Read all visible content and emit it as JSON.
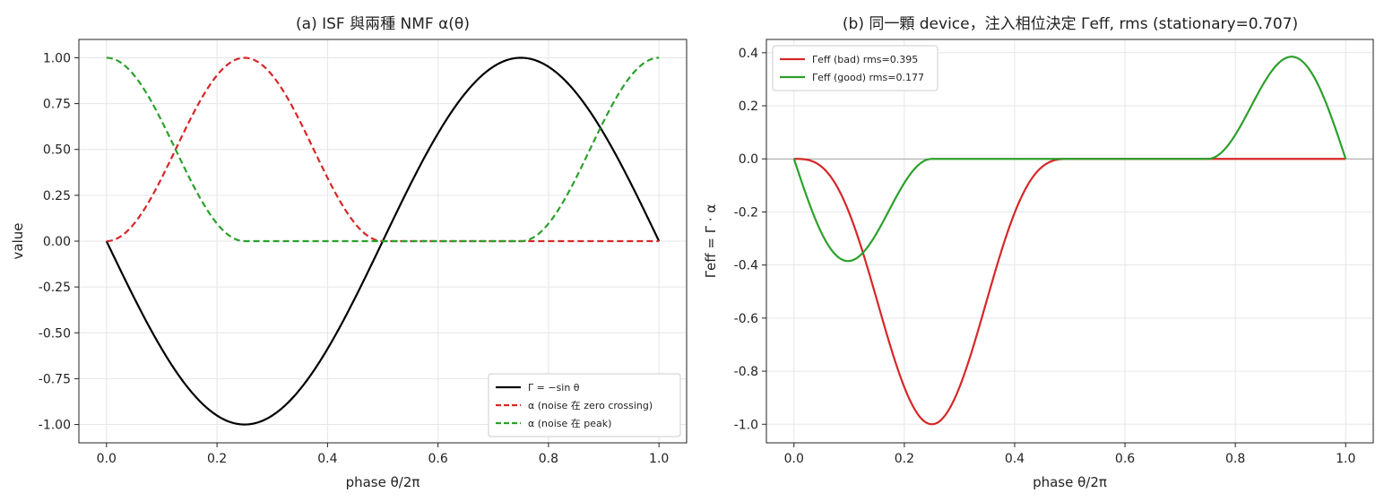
{
  "figure": {
    "background": "#ffffff"
  },
  "chart_data": [
    {
      "type": "line",
      "title": "(a) ISF 與兩種 NMF α(θ)",
      "xlabel": "phase θ/2π",
      "ylabel": "value",
      "xlim": [
        -0.05,
        1.05
      ],
      "ylim": [
        -1.1,
        1.1
      ],
      "xticks": [
        0.0,
        0.2,
        0.4,
        0.6,
        0.8,
        1.0
      ],
      "xtick_labels": [
        "0.0",
        "0.2",
        "0.4",
        "0.6",
        "0.8",
        "1.0"
      ],
      "yticks": [
        1.0,
        0.75,
        0.5,
        0.25,
        0.0,
        -0.25,
        -0.5,
        -0.75,
        -1.0
      ],
      "ytick_labels": [
        "1.00",
        "0.75",
        "0.50",
        "0.25",
        "0.00",
        "-0.25",
        "-0.50",
        "-0.75",
        "-1.00"
      ],
      "grid": true,
      "legend_position": "lower-right",
      "series": [
        {
          "name": "Γ = −sin θ",
          "color": "#000000",
          "style": "solid",
          "formula": "-sin(2πx) for x in [0,1]"
        },
        {
          "name": "α (noise 在 zero crossing)",
          "color": "#d62728",
          "style": "dashed",
          "formula": "sin²(2πx) for x in [0,0.5], else 0"
        },
        {
          "name": "α (noise 在 peak)",
          "color": "#2ca02c",
          "style": "dashed",
          "formula": "cos²(2πx) for x in [0,0.25] and [0.75,1], else 0"
        }
      ]
    },
    {
      "type": "line",
      "title": "(b) 同一顆 device，注入相位決定 Γeff, rms (stationary=0.707)",
      "xlabel": "phase θ/2π",
      "ylabel": "Γeff = Γ · α",
      "xlim": [
        -0.05,
        1.05
      ],
      "ylim": [
        -1.07,
        0.45
      ],
      "xticks": [
        0.0,
        0.2,
        0.4,
        0.6,
        0.8,
        1.0
      ],
      "xtick_labels": [
        "0.0",
        "0.2",
        "0.4",
        "0.6",
        "0.8",
        "1.0"
      ],
      "yticks": [
        0.4,
        0.2,
        0.0,
        -0.2,
        -0.4,
        -0.6,
        -0.8,
        -1.0
      ],
      "ytick_labels": [
        "0.4",
        "0.2",
        "0.0",
        "-0.2",
        "-0.4",
        "-0.6",
        "-0.8",
        "-1.0"
      ],
      "grid": true,
      "hline_at": 0.0,
      "legend_position": "upper-left",
      "series": [
        {
          "name": "Γeff (bad) rms=0.395",
          "color": "#d62728",
          "style": "solid",
          "formula": "-sin(2πx)·sin²(2πx) for x in [0,0.5], else 0"
        },
        {
          "name": "Γeff (good) rms=0.177",
          "color": "#2ca02c",
          "style": "solid",
          "formula": "-sin(2πx)·cos²(2πx) for x in [0,0.25] and [0.75,1], else 0"
        }
      ]
    }
  ]
}
